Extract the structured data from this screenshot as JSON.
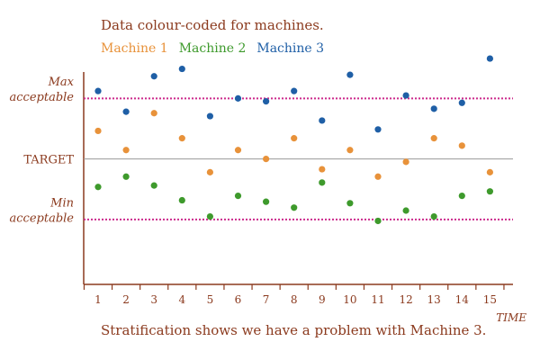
{
  "chart_data": {
    "type": "scatter",
    "title": "Data colour-coded for machines.",
    "footnote": "Stratification shows we have a problem with Machine 3.",
    "xlabel": "TIME",
    "x": [
      1,
      2,
      3,
      4,
      5,
      6,
      7,
      8,
      9,
      10,
      11,
      12,
      13,
      14,
      15
    ],
    "xlim": [
      0.5,
      16.5
    ],
    "ylim": [
      0,
      15
    ],
    "grid": false,
    "legend_placement": "top-left",
    "reference_lines": [
      {
        "label": "Max acceptable",
        "label_lines": [
          "Max",
          "acceptable"
        ],
        "value": 12.6,
        "color": "#cc2a8c",
        "style": "dotted"
      },
      {
        "label": "TARGET",
        "label_lines": [
          "TARGET"
        ],
        "value": 8.5,
        "color": "#999999",
        "style": "solid"
      },
      {
        "label": "Min acceptable",
        "label_lines": [
          "Min",
          "acceptable"
        ],
        "value": 4.4,
        "color": "#cc2a8c",
        "style": "dotted"
      }
    ],
    "series": [
      {
        "name": "Machine 1",
        "color": "#e8923a",
        "values": [
          10.4,
          9.1,
          11.6,
          9.9,
          7.6,
          9.1,
          8.5,
          9.9,
          7.8,
          9.1,
          7.3,
          8.3,
          9.9,
          9.4,
          7.6
        ]
      },
      {
        "name": "Machine 2",
        "color": "#3e9a2c",
        "values": [
          6.6,
          7.3,
          6.7,
          5.7,
          4.6,
          6.0,
          5.6,
          5.2,
          6.9,
          5.5,
          4.3,
          5.0,
          4.6,
          6.0,
          6.3
        ]
      },
      {
        "name": "Machine 3",
        "color": "#1f5fa6",
        "values": [
          13.1,
          11.7,
          14.1,
          14.6,
          11.4,
          12.6,
          12.4,
          13.1,
          11.1,
          14.2,
          10.5,
          12.8,
          11.9,
          12.3,
          15.3
        ]
      }
    ]
  }
}
